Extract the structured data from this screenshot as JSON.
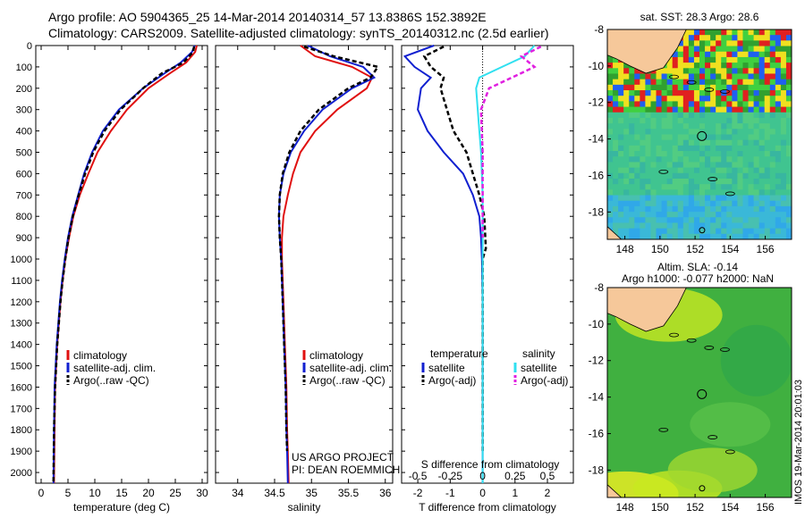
{
  "header": {
    "title_line1": "Argo profile: AO 5904365_25 14-Mar-2014 20140314_57 13.8386S 152.3892E",
    "title_line2": "Climatology: CARS2009. Satellite-adjusted climatology: synTS_20140312.nc (2.5d earlier)"
  },
  "side_label": "IMOS 19-Mar-2014 20:01:03",
  "colors": {
    "climatology": "#e01010",
    "satellite": "#1020d0",
    "argo": "#000000",
    "sal_satellite": "#30e0f0",
    "sal_argo": "#e020e0",
    "land": "#f6c89a"
  },
  "chart_data": [
    {
      "id": "temperature",
      "type": "line",
      "xlabel": "temperature (deg C)",
      "ylabel": "",
      "xlim": [
        -1,
        31
      ],
      "ylim": [
        2050,
        0
      ],
      "xticks": [
        0,
        5,
        10,
        15,
        20,
        25,
        30
      ],
      "yticks": [
        0,
        100,
        200,
        300,
        400,
        500,
        600,
        700,
        800,
        900,
        1000,
        1100,
        1200,
        1300,
        1400,
        1500,
        1600,
        1700,
        1800,
        1900,
        2000
      ],
      "legend": [
        "climatology",
        "satellite-adj. clim.",
        "Argo(..raw -QC)"
      ],
      "legend_loc": "lower-center",
      "series": [
        {
          "name": "climatology",
          "style": "solid",
          "color": "#e01010",
          "x": [
            29.0,
            28.7,
            27.0,
            24.0,
            20.0,
            16.0,
            13.0,
            10.5,
            8.8,
            7.2,
            6.0,
            5.2,
            4.5,
            4.0,
            3.6,
            3.3,
            3.0,
            2.8,
            2.6,
            2.5,
            2.4
          ],
          "y": [
            0,
            30,
            80,
            130,
            200,
            300,
            400,
            500,
            600,
            700,
            800,
            900,
            1000,
            1100,
            1200,
            1300,
            1400,
            1500,
            1600,
            1800,
            2050
          ]
        },
        {
          "name": "satellite-adj. clim.",
          "style": "solid",
          "color": "#1020d0",
          "x": [
            28.6,
            28.1,
            26.0,
            23.0,
            19.0,
            14.5,
            11.5,
            9.5,
            8.0,
            6.9,
            5.8,
            5.0,
            4.4,
            3.9,
            3.5,
            3.2,
            2.9,
            2.7,
            2.5,
            2.4,
            2.3
          ],
          "y": [
            0,
            30,
            80,
            130,
            200,
            300,
            400,
            500,
            600,
            700,
            800,
            900,
            1000,
            1100,
            1200,
            1300,
            1400,
            1500,
            1600,
            1800,
            2050
          ]
        },
        {
          "name": "Argo(..raw -QC)",
          "style": "dashed",
          "color": "#000000",
          "x": [
            28.5,
            28.3,
            26.5,
            22.5,
            19.0,
            14.8,
            11.8,
            9.7,
            8.2,
            7.0,
            5.9,
            5.1,
            4.5,
            4.0,
            3.6,
            3.3,
            3.0,
            2.8,
            2.6,
            2.4,
            2.3
          ],
          "y": [
            5,
            30,
            80,
            130,
            200,
            300,
            400,
            500,
            600,
            700,
            800,
            900,
            1000,
            1100,
            1200,
            1300,
            1400,
            1500,
            1600,
            1800,
            2050
          ]
        }
      ]
    },
    {
      "id": "salinity",
      "type": "line",
      "xlabel": "salinity",
      "ylabel": "",
      "xlim": [
        33.7,
        36.1
      ],
      "ylim": [
        2050,
        0
      ],
      "xticks": [
        34,
        34.5,
        35,
        35.5,
        36
      ],
      "legend": [
        "climatology",
        "satellite-adj. clim.",
        "Argo(..raw -QC)"
      ],
      "legend_loc": "lower-center",
      "annotations": [
        "US ARGO PROJECT",
        "PI: DEAN ROEMMICH"
      ],
      "series": [
        {
          "name": "climatology",
          "style": "solid",
          "color": "#e01010",
          "x": [
            34.85,
            35.05,
            35.55,
            35.82,
            35.75,
            35.35,
            35.05,
            34.85,
            34.75,
            34.68,
            34.62,
            34.6,
            34.6,
            34.62,
            34.64,
            34.66,
            34.67,
            34.68,
            34.69
          ],
          "y": [
            0,
            50,
            100,
            150,
            200,
            300,
            400,
            500,
            600,
            700,
            800,
            900,
            1000,
            1200,
            1400,
            1600,
            1800,
            1900,
            2050
          ]
        },
        {
          "name": "satellite-adj. clim.",
          "style": "solid",
          "color": "#1020d0",
          "x": [
            34.95,
            35.25,
            35.7,
            35.85,
            35.55,
            35.15,
            34.9,
            34.72,
            34.62,
            34.57,
            34.56,
            34.57,
            34.59,
            34.61,
            34.63,
            34.65,
            34.66,
            34.67,
            34.68
          ],
          "y": [
            0,
            50,
            100,
            150,
            200,
            300,
            400,
            500,
            600,
            700,
            800,
            900,
            1000,
            1200,
            1400,
            1600,
            1800,
            1900,
            2050
          ]
        },
        {
          "name": "Argo(..raw -QC)",
          "style": "dashed",
          "color": "#000000",
          "x": [
            34.9,
            35.3,
            35.9,
            35.8,
            35.5,
            35.1,
            34.85,
            34.7,
            34.61,
            34.57,
            34.56,
            34.57,
            34.59,
            34.61,
            34.63,
            34.65,
            34.66,
            34.67
          ],
          "y": [
            5,
            50,
            100,
            150,
            200,
            300,
            400,
            500,
            600,
            700,
            800,
            900,
            1000,
            1200,
            1400,
            1600,
            1800,
            1900
          ]
        }
      ]
    },
    {
      "id": "difference",
      "type": "line",
      "xlabel": "T difference from climatology",
      "xlabel_top": "S difference from climatology",
      "xlim": [
        -2.5,
        2.8
      ],
      "ylim": [
        2050,
        0
      ],
      "xticks": [
        -2,
        -1,
        0,
        1,
        2
      ],
      "xticks_s_labels": [
        "-0.5",
        "-0.25",
        "0",
        "0.25",
        "0.5"
      ],
      "legend_temperature_title": "temperature",
      "legend_salinity_title": "salinity",
      "legend_temperature": [
        "satellite",
        "Argo(-adj)"
      ],
      "legend_salinity": [
        "satellite",
        "Argo(-adj)"
      ],
      "legend_loc": "lower-center",
      "series": [
        {
          "name": "temperature satellite",
          "style": "solid",
          "color": "#1020d0",
          "x": [
            -1.5,
            -2.4,
            -2.1,
            -1.6,
            -1.9,
            -2.0,
            -1.7,
            -1.2,
            -0.6,
            -0.3,
            -0.1,
            -0.05,
            -0.02,
            0,
            0,
            0
          ],
          "y": [
            0,
            50,
            100,
            150,
            200,
            300,
            400,
            500,
            600,
            700,
            800,
            900,
            1000,
            1200,
            1600,
            2050
          ]
        },
        {
          "name": "temperature Argo(-adj)",
          "style": "dashed",
          "color": "#000000",
          "x": [
            -1.2,
            -1.8,
            -1.6,
            -1.2,
            -1.3,
            -1.1,
            -0.9,
            -0.5,
            -0.3,
            -0.1,
            0.05,
            0.1,
            0,
            0,
            0
          ],
          "y": [
            5,
            50,
            100,
            150,
            200,
            300,
            400,
            500,
            600,
            700,
            800,
            950,
            1000,
            1200,
            1900
          ]
        },
        {
          "name": "salinity satellite",
          "style": "solid",
          "color": "#30e0f0",
          "x": [
            1.6,
            1.3,
            0.6,
            -0.1,
            -0.2,
            -0.15,
            -0.1,
            -0.05,
            0,
            0,
            0
          ],
          "y": [
            0,
            50,
            100,
            150,
            200,
            300,
            400,
            500,
            700,
            1200,
            2050
          ]
        },
        {
          "name": "salinity Argo(-adj)",
          "style": "dashed",
          "color": "#e020e0",
          "x": [
            1.8,
            1.2,
            1.6,
            0.9,
            0.2,
            -0.05,
            0,
            0
          ],
          "y": [
            5,
            50,
            100,
            150,
            200,
            300,
            500,
            900
          ]
        }
      ]
    },
    {
      "id": "sst-map",
      "type": "heatmap",
      "title": "sat. SST: 28.3 Argo: 28.6",
      "xlim": [
        147,
        157.5
      ],
      "ylim": [
        -19.5,
        -8
      ],
      "xticks": [
        148,
        150,
        152,
        154,
        156
      ],
      "yticks": [
        -8,
        -10,
        -12,
        -14,
        -16,
        -18
      ],
      "argo_position": {
        "lon": 152.39,
        "lat": -13.84
      },
      "marker2": {
        "lon": 152.4,
        "lat": -19.0
      }
    },
    {
      "id": "sla-map",
      "type": "heatmap",
      "title_line1": "Altim. SLA: -0.14",
      "title_line2": "Argo h1000: -0.077 h2000: NaN",
      "xlim": [
        147,
        157.5
      ],
      "ylim": [
        -19.5,
        -8
      ],
      "xticks": [
        148,
        150,
        152,
        154,
        156
      ],
      "yticks": [
        -8,
        -10,
        -12,
        -14,
        -16,
        -18
      ],
      "argo_position": {
        "lon": 152.39,
        "lat": -13.84
      },
      "marker2": {
        "lon": 152.4,
        "lat": -19.0
      }
    }
  ]
}
